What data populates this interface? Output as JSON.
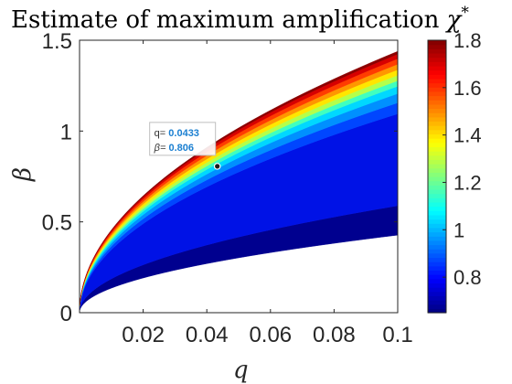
{
  "chart_data": {
    "type": "filled-contour",
    "title": "Estimate of maximum amplification",
    "title_symbol": "χ",
    "title_symbol_sup": "*",
    "xlabel": "q",
    "ylabel": "β",
    "xlim": [
      0,
      0.1
    ],
    "ylim": [
      0,
      1.5
    ],
    "x_ticks": [
      "0.02",
      "0.04",
      "0.06",
      "0.08",
      "0.1"
    ],
    "y_ticks": [
      "0",
      "0.5",
      "1",
      "1.5"
    ],
    "colorbar": {
      "range": [
        0.65,
        1.8
      ],
      "ticks": [
        "0.8",
        "1",
        "1.2",
        "1.4",
        "1.6",
        "1.8"
      ],
      "colormap": "jet"
    },
    "region": {
      "upper_boundary": {
        "coef": 4.55,
        "exp": 0.5
      },
      "lower_boundary": {
        "coef": 1.35,
        "exp": 0.5
      }
    },
    "bands": [
      {
        "level": 0.7,
        "frac_start": 0.0,
        "frac_end": 0.16,
        "color": "#00008f"
      },
      {
        "level": 0.78,
        "frac_start": 0.16,
        "frac_end": 0.66,
        "color": "#0012e6"
      },
      {
        "level": 0.85,
        "frac_start": 0.66,
        "frac_end": 0.72,
        "color": "#0046ff"
      },
      {
        "level": 0.95,
        "frac_start": 0.72,
        "frac_end": 0.77,
        "color": "#0090ff"
      },
      {
        "level": 1.05,
        "frac_start": 0.77,
        "frac_end": 0.81,
        "color": "#00d8ff"
      },
      {
        "level": 1.1,
        "frac_start": 0.81,
        "frac_end": 0.84,
        "color": "#40ffbf"
      },
      {
        "level": 1.2,
        "frac_start": 0.84,
        "frac_end": 0.87,
        "color": "#b4ff4b"
      },
      {
        "level": 1.3,
        "frac_start": 0.87,
        "frac_end": 0.9,
        "color": "#ffe600"
      },
      {
        "level": 1.4,
        "frac_start": 0.9,
        "frac_end": 0.93,
        "color": "#ff9600"
      },
      {
        "level": 1.5,
        "frac_start": 0.93,
        "frac_end": 0.96,
        "color": "#ff3c00"
      },
      {
        "level": 1.6,
        "frac_start": 0.96,
        "frac_end": 0.985,
        "color": "#d70000"
      },
      {
        "level": 1.75,
        "frac_start": 0.985,
        "frac_end": 1.0,
        "color": "#8c0000"
      }
    ],
    "datatip": {
      "q_label": "q=",
      "q_value": "0.0433",
      "beta_label": "β=",
      "beta_value": "0.806",
      "q": 0.0433,
      "beta": 0.806
    }
  }
}
